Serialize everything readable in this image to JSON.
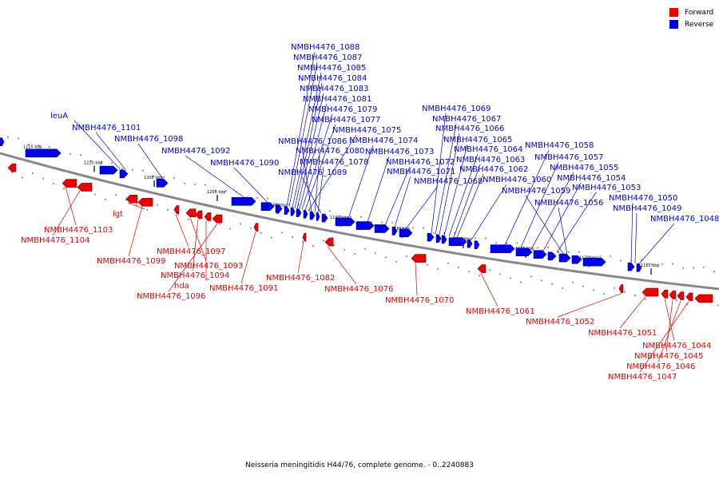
{
  "legend": {
    "forward": {
      "label": "Forward",
      "color": "#ee0000"
    },
    "reverse": {
      "label": "Reverse",
      "color": "#0000ee"
    }
  },
  "caption": "Neisseria meningitidis H44/76, complete genome. - 0..2240883",
  "axis": {
    "unit": "kbp",
    "ticks": [
      1215,
      1210,
      1205,
      1200,
      1195,
      1190,
      1185,
      1180,
      1175,
      1170,
      1165
    ]
  },
  "reverse_labels": [
    "leuA",
    "NMBH4476_1101",
    "NMBH4476_1098",
    "NMBH4476_1092",
    "NMBH4476_1090",
    "NMBH4476_1088",
    "NMBH4476_1087",
    "NMBH4476_1085",
    "NMBH4476_1084",
    "NMBH4476_1083",
    "NMBH4476_1081",
    "NMBH4476_1079",
    "NMBH4476_1077",
    "NMBH4476_1075",
    "NMBH4476_1086",
    "NMBH4476_1080",
    "NMBH4476_1078",
    "NMBH4476_1089",
    "NMBH4476_1074",
    "NMBH4476_1073",
    "NMBH4476_1072",
    "NMBH4476_1071",
    "NMBH4476_1068",
    "NMBH4476_1069",
    "NMBH4476_1067",
    "NMBH4476_1066",
    "NMBH4476_1065",
    "NMBH4476_1064",
    "NMBH4476_1063",
    "NMBH4476_1062",
    "NMBH4476_1060",
    "NMBH4476_1058",
    "NMBH4476_1057",
    "NMBH4476_1055",
    "NMBH4476_1054",
    "NMBH4476_1053",
    "NMBH4476_1059",
    "NMBH4476_1056",
    "NMBH4476_1050",
    "NMBH4476_1049",
    "NMBH4476_1048"
  ],
  "forward_labels": [
    "NMBH4476_1103",
    "NMBH4476_1104",
    "lgt",
    "NMBH4476_1099",
    "NMBH4476_1097",
    "NMBH4476_1093",
    "NMBH4476_1094",
    "hda",
    "NMBH4476_1096",
    "NMBH4476_1091",
    "NMBH4476_1082",
    "NMBH4476_1076",
    "NMBH4476_1070",
    "NMBH4476_1061",
    "NMBH4476_1052",
    "NMBH4476_1051",
    "NMBH4476_1044",
    "NMBH4476_1045",
    "NMBH4476_1046",
    "NMBH4476_1047"
  ]
}
